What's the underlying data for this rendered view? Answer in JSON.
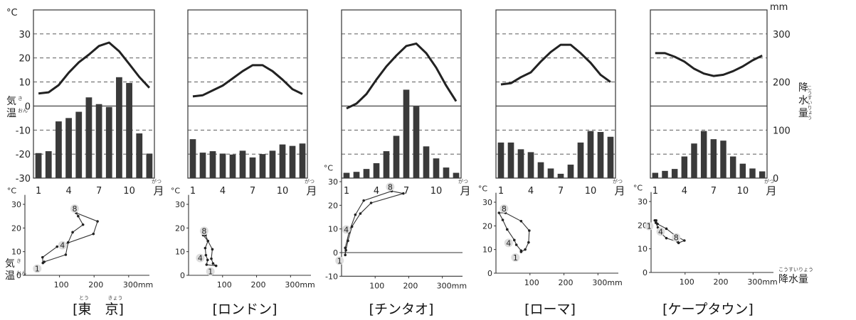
{
  "labels": {
    "celsius": "°C",
    "mm": "mm",
    "kion": "気温",
    "kion_ruby_ki": "き",
    "kion_ruby_on": "おん",
    "kousuiryou": "降水量",
    "kousuiryou_ruby": "こうすいりょう",
    "tsuki": "月",
    "tsuki_ruby": "がつ",
    "tokyo_ruby_to": "とう",
    "tokyo_ruby_kyo": "きょう"
  },
  "axes": {
    "temp_ticks": [
      30,
      20,
      10,
      0,
      -10,
      -20,
      -30
    ],
    "temp_range": [
      -30,
      40
    ],
    "precip_ticks": [
      0,
      100,
      200,
      300
    ],
    "precip_range": [
      0,
      350
    ],
    "month_ticks": [
      1,
      4,
      7,
      10
    ],
    "scatter_temp_ticks": {
      "tokyo": [
        30,
        20,
        10,
        0
      ],
      "london": [
        30,
        20,
        10,
        0
      ],
      "tintao": [
        30,
        20,
        10,
        0,
        -10
      ],
      "rome": [
        30,
        20,
        10,
        0
      ],
      "capetown": [
        30,
        20,
        10,
        0
      ]
    },
    "scatter_precip_ticks": [
      100,
      200,
      300
    ],
    "scatter_precip_unit": "mm",
    "scatter_precip_range": [
      0,
      360
    ],
    "scatter_origin_label": "0"
  },
  "chart_data": [
    {
      "type": "bar+line",
      "city": "東　京",
      "title": "[東　京]",
      "months": [
        1,
        2,
        3,
        4,
        5,
        6,
        7,
        8,
        9,
        10,
        11,
        12
      ],
      "temperature_c": [
        5.2,
        5.7,
        8.7,
        13.9,
        18.2,
        21.4,
        25.0,
        26.4,
        22.8,
        17.5,
        12.1,
        7.6
      ],
      "precipitation_mm": [
        52,
        56,
        118,
        125,
        138,
        168,
        154,
        148,
        210,
        198,
        93,
        51
      ],
      "scatter_labels": [
        "1",
        "4",
        "8"
      ]
    },
    {
      "type": "bar+line",
      "city": "ロンドン",
      "title": "[ロンドン]",
      "months": [
        1,
        2,
        3,
        4,
        5,
        6,
        7,
        8,
        9,
        10,
        11,
        12
      ],
      "temperature_c": [
        4,
        4.5,
        6.5,
        8.5,
        11.5,
        14.5,
        17,
        17,
        14.5,
        11,
        7,
        5
      ],
      "precipitation_mm": [
        81,
        53,
        56,
        51,
        49,
        57,
        43,
        50,
        57,
        70,
        67,
        72
      ],
      "scatter_labels": [
        "1",
        "4",
        "8"
      ]
    },
    {
      "type": "bar+line",
      "city": "チンタオ",
      "title": "[チンタオ]",
      "months": [
        1,
        2,
        3,
        4,
        5,
        6,
        7,
        8,
        9,
        10,
        11,
        12
      ],
      "temperature_c": [
        -1,
        1,
        5,
        11,
        16.5,
        21,
        25,
        26,
        22,
        16,
        8.5,
        2
      ],
      "precipitation_mm": [
        11,
        13,
        19,
        31,
        56,
        88,
        184,
        149,
        66,
        41,
        22,
        11
      ],
      "scatter_labels": [
        "1",
        "4",
        "8"
      ]
    },
    {
      "type": "bar+line",
      "city": "ローマ",
      "title": "[ローマ]",
      "months": [
        1,
        2,
        3,
        4,
        5,
        6,
        7,
        8,
        9,
        10,
        11,
        12
      ],
      "temperature_c": [
        9,
        9.5,
        12,
        14,
        18.5,
        22.5,
        25.5,
        25.5,
        22,
        18,
        13,
        10
      ],
      "precipitation_mm": [
        74,
        74,
        60,
        54,
        33,
        20,
        9,
        28,
        74,
        98,
        96,
        86
      ],
      "scatter_labels": [
        "1",
        "4",
        "8"
      ]
    },
    {
      "type": "bar+line",
      "city": "ケープタウン",
      "title": "[ケープタウン]",
      "months": [
        1,
        2,
        3,
        4,
        5,
        6,
        7,
        8,
        9,
        10,
        11,
        12
      ],
      "temperature_c": [
        22,
        22,
        20.5,
        18.5,
        15.5,
        13.5,
        12.5,
        13,
        14.5,
        16.5,
        19,
        21
      ],
      "precipitation_mm": [
        11,
        15,
        19,
        45,
        72,
        98,
        81,
        78,
        45,
        30,
        20,
        14
      ],
      "scatter_labels": [
        "1",
        "4",
        "8"
      ]
    }
  ]
}
